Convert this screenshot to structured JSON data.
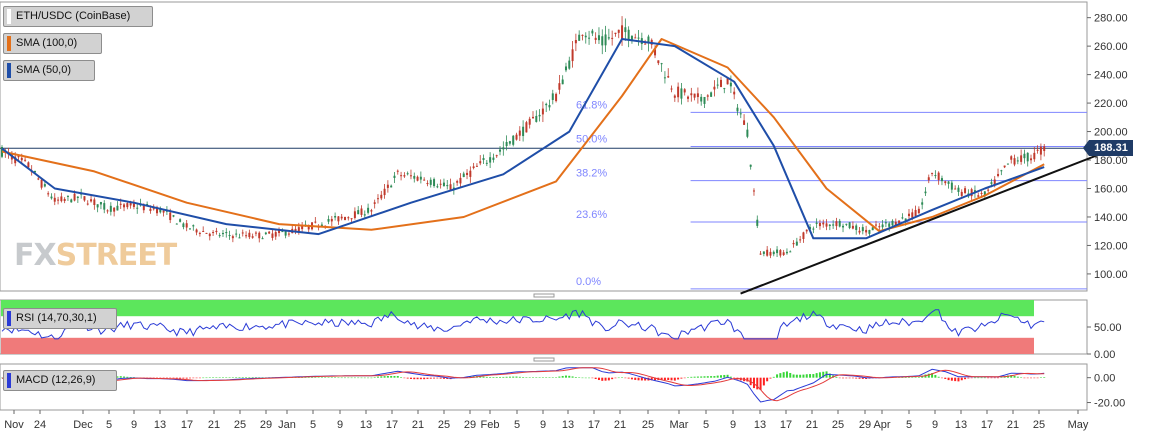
{
  "legends": {
    "pair": "ETH/USDC (CoinBase)",
    "sma100": "SMA (100,0)",
    "sma50": "SMA (50,0)",
    "rsi": "RSI (14,70,30,1)",
    "macd": "MACD (12,26,9)"
  },
  "colors": {
    "candle_up": "#2e8b57",
    "candle_down": "#c0392b",
    "sma100": "#e3701a",
    "sma50": "#1f4ea8",
    "fib": "#7f86ff",
    "rsi_line": "#2b3bd6",
    "rsi_overbought": "#5ce65c",
    "rsi_oversold": "#f07a7a",
    "macd_line": "#2b3bd6",
    "signal_line": "#e33b3b",
    "hist_pos": "#36d636",
    "hist_neg": "#ff2020"
  },
  "watermark": {
    "part1": "FX",
    "part2": "STREET"
  },
  "last_price": "188.31",
  "chart_data": {
    "type": "line",
    "title": "ETH/USDC (CoinBase)",
    "price_axis_ticks": [
      "280.00",
      "260.00",
      "240.00",
      "220.00",
      "200.00",
      "180.00",
      "160.00",
      "140.00",
      "120.00",
      "100.00"
    ],
    "price_ylim": [
      88,
      291
    ],
    "x_labels": [
      "Nov",
      "24",
      "Dec",
      "5",
      "9",
      "13",
      "17",
      "21",
      "25",
      "29",
      "Jan",
      "5",
      "9",
      "13",
      "17",
      "21",
      "25",
      "29",
      "Feb",
      "5",
      "9",
      "13",
      "17",
      "21",
      "25",
      "Mar",
      "5",
      "9",
      "13",
      "17",
      "21",
      "25",
      "29",
      "Apr",
      "5",
      "9",
      "13",
      "17",
      "21",
      "25",
      "May"
    ],
    "fib_levels": [
      {
        "label": "61.8%",
        "price": 213.5
      },
      {
        "label": "50.0%",
        "price": 189.5
      },
      {
        "label": "38.2%",
        "price": 165.5
      },
      {
        "label": "23.6%",
        "price": 136.5
      },
      {
        "label": "0.0%",
        "price": 89.5
      }
    ],
    "horizontal_line": 188.31,
    "trendline": {
      "from": {
        "date": "Mar 12",
        "price": 89
      },
      "to": {
        "date": "Apr 30",
        "price": 183
      }
    },
    "close": [
      {
        "date": "Nov 18",
        "value": 186
      },
      {
        "date": "Nov 22",
        "value": 176
      },
      {
        "date": "Nov 26",
        "value": 151
      },
      {
        "date": "Nov 30",
        "value": 154
      },
      {
        "date": "Dec 4",
        "value": 146
      },
      {
        "date": "Dec 8",
        "value": 148
      },
      {
        "date": "Dec 12",
        "value": 145
      },
      {
        "date": "Dec 16",
        "value": 133
      },
      {
        "date": "Dec 20",
        "value": 128
      },
      {
        "date": "Dec 24",
        "value": 127
      },
      {
        "date": "Dec 28",
        "value": 127
      },
      {
        "date": "Jan 1",
        "value": 130
      },
      {
        "date": "Jan 5",
        "value": 135
      },
      {
        "date": "Jan 9",
        "value": 140
      },
      {
        "date": "Jan 13",
        "value": 145
      },
      {
        "date": "Jan 17",
        "value": 170
      },
      {
        "date": "Jan 21",
        "value": 167
      },
      {
        "date": "Jan 25",
        "value": 160
      },
      {
        "date": "Jan 29",
        "value": 175
      },
      {
        "date": "Feb 2",
        "value": 188
      },
      {
        "date": "Feb 6",
        "value": 205
      },
      {
        "date": "Feb 10",
        "value": 225
      },
      {
        "date": "Feb 14",
        "value": 272
      },
      {
        "date": "Feb 17",
        "value": 262
      },
      {
        "date": "Feb 20",
        "value": 270
      },
      {
        "date": "Feb 24",
        "value": 265
      },
      {
        "date": "Feb 28",
        "value": 228
      },
      {
        "date": "Mar 3",
        "value": 222
      },
      {
        "date": "Mar 7",
        "value": 236
      },
      {
        "date": "Mar 10",
        "value": 200
      },
      {
        "date": "Mar 12",
        "value": 115
      },
      {
        "date": "Mar 16",
        "value": 115
      },
      {
        "date": "Mar 20",
        "value": 134
      },
      {
        "date": "Mar 24",
        "value": 136
      },
      {
        "date": "Mar 28",
        "value": 130
      },
      {
        "date": "Apr 1",
        "value": 136
      },
      {
        "date": "Apr 5",
        "value": 143
      },
      {
        "date": "Apr 7",
        "value": 172
      },
      {
        "date": "Apr 11",
        "value": 158
      },
      {
        "date": "Apr 15",
        "value": 155
      },
      {
        "date": "Apr 19",
        "value": 180
      },
      {
        "date": "Apr 22",
        "value": 182
      },
      {
        "date": "Apr 24",
        "value": 188
      }
    ],
    "series": [
      {
        "name": "SMA (100,0)",
        "values": [
          {
            "date": "Nov 18",
            "value": 186
          },
          {
            "date": "Dec 2",
            "value": 172
          },
          {
            "date": "Dec 16",
            "value": 150
          },
          {
            "date": "Dec 30",
            "value": 135
          },
          {
            "date": "Jan 13",
            "value": 131
          },
          {
            "date": "Jan 27",
            "value": 140
          },
          {
            "date": "Feb 10",
            "value": 165
          },
          {
            "date": "Feb 20",
            "value": 225
          },
          {
            "date": "Feb 26",
            "value": 265
          },
          {
            "date": "Mar 7",
            "value": 245
          },
          {
            "date": "Mar 14",
            "value": 210
          },
          {
            "date": "Mar 22",
            "value": 160
          },
          {
            "date": "Mar 30",
            "value": 130
          },
          {
            "date": "Apr 7",
            "value": 140
          },
          {
            "date": "Apr 15",
            "value": 155
          },
          {
            "date": "Apr 24",
            "value": 177
          }
        ]
      },
      {
        "name": "SMA (50,0)",
        "values": [
          {
            "date": "Nov 18",
            "value": 188
          },
          {
            "date": "Nov 26",
            "value": 160
          },
          {
            "date": "Dec 8",
            "value": 150
          },
          {
            "date": "Dec 22",
            "value": 135
          },
          {
            "date": "Jan 5",
            "value": 128
          },
          {
            "date": "Jan 19",
            "value": 150
          },
          {
            "date": "Feb 2",
            "value": 170
          },
          {
            "date": "Feb 12",
            "value": 200
          },
          {
            "date": "Feb 20",
            "value": 265
          },
          {
            "date": "Feb 28",
            "value": 260
          },
          {
            "date": "Mar 8",
            "value": 235
          },
          {
            "date": "Mar 14",
            "value": 190
          },
          {
            "date": "Mar 20",
            "value": 125
          },
          {
            "date": "Mar 28",
            "value": 125
          },
          {
            "date": "Apr 7",
            "value": 145
          },
          {
            "date": "Apr 15",
            "value": 160
          },
          {
            "date": "Apr 24",
            "value": 175
          }
        ]
      }
    ],
    "rsi": {
      "ticks": [
        "50.00",
        "0.00"
      ],
      "ylim": [
        0,
        100
      ],
      "overbought": 70,
      "oversold": 30
    },
    "macd": {
      "ticks": [
        "0.00",
        "-20.00"
      ],
      "ylim": [
        -26,
        11
      ]
    }
  }
}
